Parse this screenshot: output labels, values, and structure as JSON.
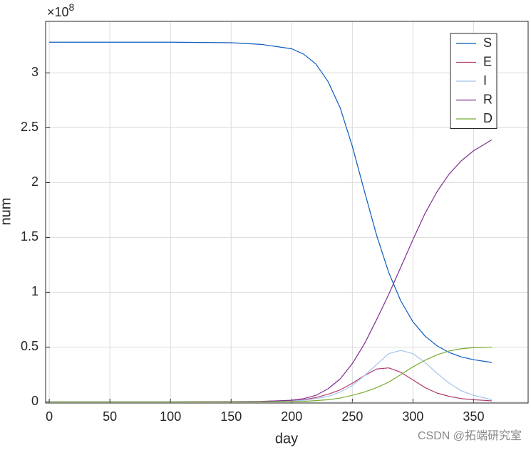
{
  "chart_data": {
    "type": "line",
    "xlabel": "day",
    "ylabel": "num",
    "y_multiplier": {
      "base": "×10",
      "exponent": "8"
    },
    "watermark": "CSDN @拓端研究室",
    "x": [
      0,
      50,
      100,
      150,
      175,
      200,
      210,
      220,
      230,
      240,
      250,
      260,
      270,
      280,
      290,
      300,
      310,
      320,
      330,
      340,
      350,
      365
    ],
    "series": [
      {
        "name": "S",
        "color": "#0b5bbf",
        "values": [
          3.28,
          3.28,
          3.28,
          3.275,
          3.26,
          3.22,
          3.17,
          3.08,
          2.92,
          2.68,
          2.33,
          1.92,
          1.52,
          1.18,
          0.92,
          0.73,
          0.6,
          0.51,
          0.45,
          0.41,
          0.385,
          0.36
        ]
      },
      {
        "name": "E",
        "color": "#b23a6e",
        "values": [
          0,
          0,
          0,
          0.001,
          0.003,
          0.01,
          0.02,
          0.04,
          0.07,
          0.11,
          0.17,
          0.24,
          0.3,
          0.31,
          0.27,
          0.2,
          0.13,
          0.08,
          0.05,
          0.03,
          0.02,
          0.01
        ]
      },
      {
        "name": "I",
        "color": "#a4c2ec",
        "values": [
          0,
          0,
          0,
          0.001,
          0.002,
          0.008,
          0.015,
          0.03,
          0.05,
          0.09,
          0.15,
          0.24,
          0.34,
          0.44,
          0.47,
          0.44,
          0.36,
          0.26,
          0.17,
          0.1,
          0.06,
          0.02
        ]
      },
      {
        "name": "R",
        "color": "#7e2f8e",
        "values": [
          0,
          0,
          0,
          0.002,
          0.005,
          0.015,
          0.03,
          0.06,
          0.12,
          0.21,
          0.35,
          0.53,
          0.75,
          0.98,
          1.23,
          1.48,
          1.72,
          1.92,
          2.08,
          2.2,
          2.29,
          2.39
        ]
      },
      {
        "name": "D",
        "color": "#77ac30",
        "values": [
          0,
          0,
          0,
          0,
          0.001,
          0.003,
          0.006,
          0.012,
          0.02,
          0.035,
          0.06,
          0.09,
          0.13,
          0.18,
          0.25,
          0.32,
          0.38,
          0.43,
          0.465,
          0.485,
          0.495,
          0.5
        ]
      }
    ],
    "xlim": [
      -3,
      395
    ],
    "ylim": [
      -0.01,
      3.47
    ],
    "xticks": [
      0,
      50,
      100,
      150,
      200,
      250,
      300,
      350
    ],
    "yticks": [
      0,
      0.5,
      1,
      1.5,
      2,
      2.5,
      3
    ],
    "grid": true,
    "legend": "upper right"
  }
}
